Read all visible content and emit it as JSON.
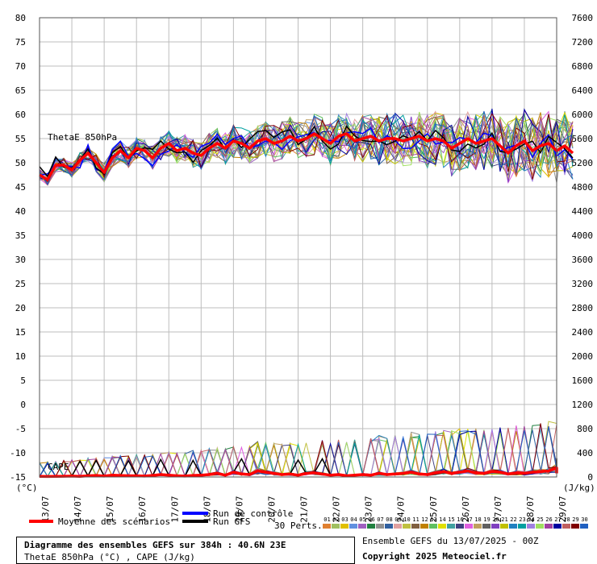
{
  "chart_data": {
    "type": "line",
    "left_axis": {
      "unit": "(°C)",
      "ticks": [
        80,
        75,
        70,
        65,
        60,
        55,
        50,
        45,
        40,
        35,
        30,
        25,
        20,
        15,
        10,
        5,
        0,
        -5,
        -10,
        -15
      ],
      "range": [
        -15,
        80
      ]
    },
    "right_axis": {
      "unit": "(J/kg)",
      "ticks": [
        7600,
        7200,
        6800,
        6400,
        6000,
        5600,
        5200,
        4800,
        4400,
        4000,
        3600,
        3200,
        2800,
        2400,
        2000,
        1600,
        1200,
        800,
        400,
        0
      ],
      "range": [
        0,
        7600
      ]
    },
    "x_dates": [
      "13/07",
      "14/07",
      "15/07",
      "16/07",
      "17/07",
      "18/07",
      "19/07",
      "20/07",
      "21/07",
      "22/07",
      "23/07",
      "24/07",
      "25/07",
      "26/07",
      "27/07",
      "28/07",
      "29/07"
    ],
    "grid": true,
    "labels": {
      "thetae": "ThetaE 850hPa",
      "cape": "CAPE"
    },
    "series": [
      {
        "name": "Moyenne des scénarios",
        "color": "#ff0000",
        "thetae": [
          47.5,
          46.5,
          49.5,
          49.5,
          48.5,
          50.5,
          52,
          50,
          48,
          51,
          52.5,
          51,
          53,
          52.5,
          51,
          53,
          54,
          52.5,
          53,
          52,
          51.5,
          53,
          54,
          53,
          54.5,
          54,
          53,
          54.5,
          55,
          54,
          54.5,
          55.5,
          54.5,
          55,
          56,
          55,
          54,
          55.5,
          56,
          54.5,
          55,
          55.5,
          54.5,
          55,
          55,
          54.5,
          55,
          55.5,
          54.5,
          55,
          54.5,
          53,
          54,
          55,
          54,
          54.5,
          55,
          53.5,
          52,
          53.5,
          54.5,
          52.5,
          53.5,
          54,
          52.5,
          53.5,
          52
        ],
        "cape": [
          10,
          8,
          10,
          12,
          15,
          10,
          20,
          25,
          15,
          30,
          25,
          20,
          20,
          15,
          25,
          40,
          30,
          20,
          15,
          25,
          30,
          40,
          60,
          30,
          80,
          50,
          40,
          100,
          80,
          60,
          40,
          50,
          30,
          60,
          70,
          50,
          30,
          40,
          20,
          30,
          40,
          30,
          60,
          40,
          50,
          60,
          80,
          50,
          40,
          70,
          90,
          60,
          80,
          100,
          70,
          60,
          90,
          80,
          50,
          70,
          60,
          80,
          90,
          100,
          150,
          80,
          60
        ]
      },
      {
        "name": "Run de contrôle",
        "color": "#0000ff"
      },
      {
        "name": "Run GFS",
        "color": "#000000"
      }
    ],
    "perturbations": {
      "count_label": "30 Perts.",
      "numbers": [
        "01",
        "02",
        "03",
        "04",
        "05",
        "06",
        "07",
        "08",
        "09",
        "10",
        "11",
        "12",
        "13",
        "14",
        "15",
        "16",
        "17",
        "18",
        "19",
        "20",
        "21",
        "22",
        "23",
        "24",
        "25",
        "26",
        "27",
        "28",
        "29",
        "30"
      ]
    }
  },
  "colors": {
    "perts": [
      "#e08030",
      "#a0c060",
      "#e0c000",
      "#6090e0",
      "#a060c0",
      "#208040",
      "#909090",
      "#3060a0",
      "#e0a0a0",
      "#c0c040",
      "#806040",
      "#c08000",
      "#60c060",
      "#e0e000",
      "#40a0a0",
      "#404080",
      "#e060e0",
      "#c0a060",
      "#606060",
      "#8040c0",
      "#c0c000",
      "#2080c0",
      "#00a0a0",
      "#a080e0",
      "#a0e060",
      "#a040a0",
      "#0000a0",
      "#c06060",
      "#800000",
      "#2060c0"
    ]
  },
  "footer": {
    "title": "Diagramme des ensembles GEFS sur 384h : 40.6N 23E",
    "subtitle": "ThetaE 850hPa (°C) , CAPE (J/kg)",
    "ensemble": "Ensemble GEFS du 13/07/2025 - 00Z",
    "copyright": "Copyright 2025 Meteociel.fr"
  }
}
